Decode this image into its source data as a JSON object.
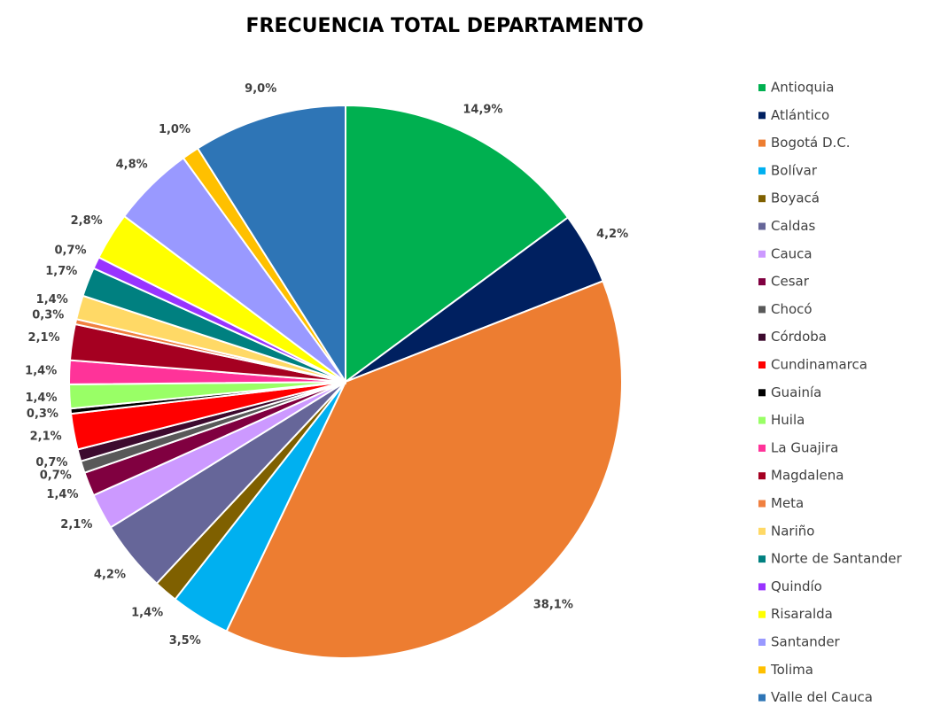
{
  "chart_data": {
    "type": "pie",
    "title": "FRECUENCIA TOTAL DEPARTAMENTO",
    "categories": [
      "Antioquia",
      "Atlántico",
      "Bogotá D.C.",
      "Bolívar",
      "Boyacá",
      "Caldas",
      "Cauca",
      "Cesar",
      "Chocó",
      "Córdoba",
      "Cundinamarca",
      "Guainía",
      "Huila",
      "La Guajira",
      "Magdalena",
      "Meta",
      "Nariño",
      "Norte de Santander",
      "Quindío",
      "Risaralda",
      "Santander",
      "Tolima",
      "Valle del Cauca"
    ],
    "values": [
      14.9,
      4.2,
      38.1,
      3.5,
      1.4,
      4.2,
      2.1,
      1.4,
      0.7,
      0.7,
      2.1,
      0.3,
      1.4,
      1.4,
      2.1,
      0.3,
      1.4,
      1.7,
      0.7,
      2.8,
      4.8,
      1.0,
      9.0
    ],
    "value_labels": [
      "14,9%",
      "4,2%",
      "38,1%",
      "3,5%",
      "1,4%",
      "4,2%",
      "2,1%",
      "1,4%",
      "0,7%",
      "0,7%",
      "2,1%",
      "0,3%",
      "1,4%",
      "1,4%",
      "2,1%",
      "0,3%",
      "1,4%",
      "1,7%",
      "0,7%",
      "2,8%",
      "4,8%",
      "1,0%",
      "9,0%"
    ],
    "colors": [
      "#00b050",
      "#002060",
      "#ed7d31",
      "#00b0f0",
      "#7f6000",
      "#666699",
      "#cc99ff",
      "#800040",
      "#595959",
      "#3d0a2e",
      "#ff0000",
      "#000000",
      "#99ff66",
      "#ff3399",
      "#a50021",
      "#f08040",
      "#ffd966",
      "#008080",
      "#9933ff",
      "#ffff00",
      "#9999ff",
      "#ffc000",
      "#2e75b6"
    ],
    "legend": "right"
  }
}
